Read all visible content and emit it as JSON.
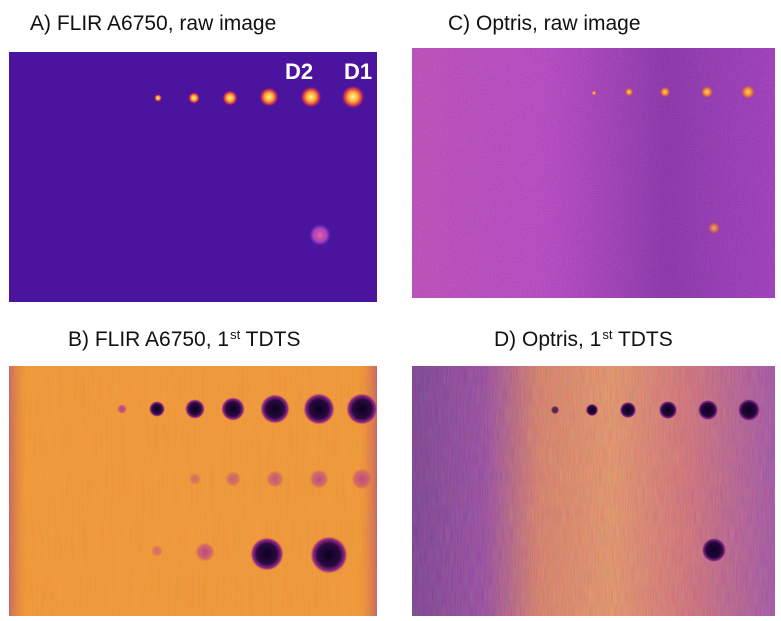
{
  "panels": {
    "a": {
      "title": "A) FLIR A6750, raw image"
    },
    "b": {
      "title_prefix": "B) FLIR A6750, 1",
      "title_sup": "st",
      "title_suffix": " TDTS"
    },
    "c": {
      "title": "C) Optris, raw image"
    },
    "d": {
      "title_prefix": "D) Optris, 1",
      "title_sup": "st",
      "title_suffix": " TDTS"
    }
  },
  "defect_labels": {
    "d2": "D2",
    "d1": "D1"
  },
  "colors": {
    "flir_raw_bg": "#4a149e",
    "flir_tdts_bg": "#e88424",
    "optris_raw_bg": "#8a2ca8",
    "optris_tdts_bg": "#c65a78",
    "hot_spot": "#ffe066",
    "cold_spot": "#14002a",
    "label_text": "#ffffff"
  }
}
